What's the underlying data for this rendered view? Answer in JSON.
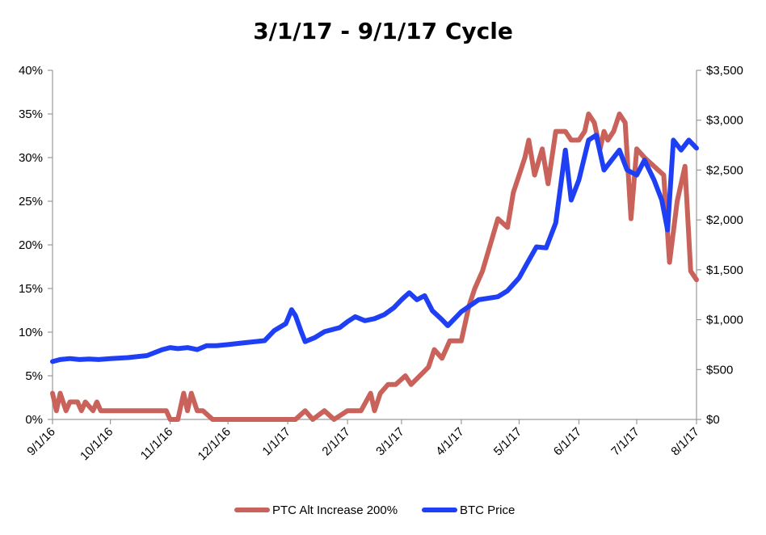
{
  "chart_data": {
    "type": "line",
    "title": "3/1/17 - 9/1/17 Cycle",
    "xlabel": "",
    "ylabel_left": "",
    "ylabel_right": "",
    "x_ticks": [
      "9/1/16",
      "10/1/16",
      "11/1/16",
      "12/1/16",
      "1/1/17",
      "2/1/17",
      "3/1/17",
      "4/1/17",
      "5/1/17",
      "6/1/17",
      "7/1/17",
      "8/1/17"
    ],
    "x_range": [
      "9/1/16",
      "8/1/17"
    ],
    "y_left": {
      "min": 0,
      "max": 40,
      "step": 5,
      "tick_labels": [
        "0%",
        "5%",
        "10%",
        "15%",
        "20%",
        "25%",
        "30%",
        "35%",
        "40%"
      ]
    },
    "y_right": {
      "min": 0,
      "max": 3500,
      "step": 500,
      "tick_labels": [
        "$0",
        "$500",
        "$1,000",
        "$1,500",
        "$2,000",
        "$2,500",
        "$3,000",
        "$3,500"
      ]
    },
    "grid": false,
    "legend_position": "bottom",
    "series": [
      {
        "name": "PTC Alt Increase 200%",
        "axis": "left",
        "color": "#c9625a",
        "points": [
          [
            "9/1/16",
            3
          ],
          [
            "9/3/16",
            1
          ],
          [
            "9/5/16",
            3
          ],
          [
            "9/8/16",
            1
          ],
          [
            "9/10/16",
            2
          ],
          [
            "9/14/16",
            2
          ],
          [
            "9/16/16",
            1
          ],
          [
            "9/18/16",
            2
          ],
          [
            "9/22/16",
            1
          ],
          [
            "9/24/16",
            2
          ],
          [
            "9/26/16",
            1
          ],
          [
            "10/15/16",
            1
          ],
          [
            "10/30/16",
            1
          ],
          [
            "11/1/16",
            0
          ],
          [
            "11/5/16",
            0
          ],
          [
            "11/8/16",
            3
          ],
          [
            "11/10/16",
            1
          ],
          [
            "11/12/16",
            3
          ],
          [
            "11/15/16",
            1
          ],
          [
            "11/18/16",
            1
          ],
          [
            "11/23/16",
            0
          ],
          [
            "12/15/16",
            0
          ],
          [
            "1/5/17",
            0
          ],
          [
            "1/10/17",
            1
          ],
          [
            "1/14/17",
            0
          ],
          [
            "1/20/17",
            1
          ],
          [
            "1/25/17",
            0
          ],
          [
            "2/1/17",
            1
          ],
          [
            "2/8/17",
            1
          ],
          [
            "2/13/17",
            3
          ],
          [
            "2/15/17",
            1
          ],
          [
            "2/18/17",
            3
          ],
          [
            "2/22/17",
            4
          ],
          [
            "2/26/17",
            4
          ],
          [
            "3/3/17",
            5
          ],
          [
            "3/6/17",
            4
          ],
          [
            "3/15/17",
            6
          ],
          [
            "3/18/17",
            8
          ],
          [
            "3/22/17",
            7
          ],
          [
            "3/26/17",
            9
          ],
          [
            "4/1/17",
            9
          ],
          [
            "4/5/17",
            13
          ],
          [
            "4/8/17",
            15
          ],
          [
            "4/12/17",
            17
          ],
          [
            "4/16/17",
            20
          ],
          [
            "4/20/17",
            23
          ],
          [
            "4/25/17",
            22
          ],
          [
            "4/28/17",
            26
          ],
          [
            "5/1/17",
            28
          ],
          [
            "5/4/17",
            30
          ],
          [
            "5/6/17",
            32
          ],
          [
            "5/9/17",
            28
          ],
          [
            "5/13/17",
            31
          ],
          [
            "5/16/17",
            27
          ],
          [
            "5/20/17",
            33
          ],
          [
            "5/25/17",
            33
          ],
          [
            "5/28/17",
            32
          ],
          [
            "6/1/17",
            32
          ],
          [
            "6/4/17",
            33
          ],
          [
            "6/6/17",
            35
          ],
          [
            "6/9/17",
            34
          ],
          [
            "6/12/17",
            31
          ],
          [
            "6/14/17",
            33
          ],
          [
            "6/16/17",
            32
          ],
          [
            "6/19/17",
            33
          ],
          [
            "6/22/17",
            35
          ],
          [
            "6/25/17",
            34
          ],
          [
            "6/28/17",
            23
          ],
          [
            "7/1/17",
            31
          ],
          [
            "7/5/17",
            30
          ],
          [
            "7/10/17",
            29
          ],
          [
            "7/15/17",
            28
          ],
          [
            "7/18/17",
            18
          ],
          [
            "7/22/17",
            25
          ],
          [
            "7/26/17",
            29
          ],
          [
            "7/29/17",
            17
          ],
          [
            "8/1/17",
            16
          ]
        ]
      },
      {
        "name": "BTC Price",
        "axis": "right",
        "color": "#1f3ff5",
        "points": [
          [
            "9/1/16",
            580
          ],
          [
            "9/5/16",
            600
          ],
          [
            "9/10/16",
            610
          ],
          [
            "9/15/16",
            600
          ],
          [
            "9/20/16",
            605
          ],
          [
            "9/25/16",
            600
          ],
          [
            "10/1/16",
            610
          ],
          [
            "10/10/16",
            620
          ],
          [
            "10/20/16",
            640
          ],
          [
            "10/28/16",
            700
          ],
          [
            "11/1/16",
            720
          ],
          [
            "11/5/16",
            710
          ],
          [
            "11/10/16",
            720
          ],
          [
            "11/15/16",
            700
          ],
          [
            "11/20/16",
            740
          ],
          [
            "11/25/16",
            740
          ],
          [
            "12/1/16",
            750
          ],
          [
            "12/10/16",
            770
          ],
          [
            "12/20/16",
            790
          ],
          [
            "12/25/16",
            890
          ],
          [
            "12/31/16",
            960
          ],
          [
            "1/3/17",
            1100
          ],
          [
            "1/5/17",
            1040
          ],
          [
            "1/8/17",
            880
          ],
          [
            "1/10/17",
            780
          ],
          [
            "1/15/17",
            820
          ],
          [
            "1/20/17",
            880
          ],
          [
            "1/28/17",
            920
          ],
          [
            "2/1/17",
            980
          ],
          [
            "2/5/17",
            1030
          ],
          [
            "2/10/17",
            990
          ],
          [
            "2/15/17",
            1010
          ],
          [
            "2/20/17",
            1050
          ],
          [
            "2/25/17",
            1120
          ],
          [
            "3/1/17",
            1200
          ],
          [
            "3/5/17",
            1270
          ],
          [
            "3/9/17",
            1200
          ],
          [
            "3/13/17",
            1240
          ],
          [
            "3/17/17",
            1090
          ],
          [
            "3/22/17",
            1000
          ],
          [
            "3/25/17",
            940
          ],
          [
            "4/1/17",
            1080
          ],
          [
            "4/10/17",
            1200
          ],
          [
            "4/20/17",
            1230
          ],
          [
            "4/25/17",
            1290
          ],
          [
            "5/1/17",
            1420
          ],
          [
            "5/5/17",
            1560
          ],
          [
            "5/10/17",
            1730
          ],
          [
            "5/15/17",
            1720
          ],
          [
            "5/20/17",
            1970
          ],
          [
            "5/25/17",
            2700
          ],
          [
            "5/28/17",
            2200
          ],
          [
            "6/1/17",
            2400
          ],
          [
            "6/6/17",
            2800
          ],
          [
            "6/10/17",
            2850
          ],
          [
            "6/14/17",
            2500
          ],
          [
            "6/18/17",
            2600
          ],
          [
            "6/22/17",
            2700
          ],
          [
            "6/26/17",
            2500
          ],
          [
            "7/1/17",
            2450
          ],
          [
            "7/5/17",
            2600
          ],
          [
            "7/10/17",
            2400
          ],
          [
            "7/14/17",
            2200
          ],
          [
            "7/17/17",
            1900
          ],
          [
            "7/20/17",
            2800
          ],
          [
            "7/24/17",
            2700
          ],
          [
            "7/28/17",
            2800
          ],
          [
            "8/1/17",
            2720
          ]
        ]
      }
    ]
  }
}
